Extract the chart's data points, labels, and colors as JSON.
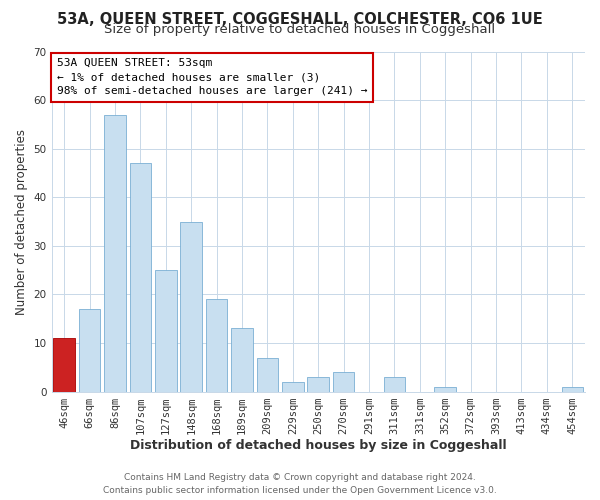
{
  "title": "53A, QUEEN STREET, COGGESHALL, COLCHESTER, CO6 1UE",
  "subtitle": "Size of property relative to detached houses in Coggeshall",
  "xlabel": "Distribution of detached houses by size in Coggeshall",
  "ylabel": "Number of detached properties",
  "footer_lines": [
    "Contains HM Land Registry data © Crown copyright and database right 2024.",
    "Contains public sector information licensed under the Open Government Licence v3.0."
  ],
  "annotation_title": "53A QUEEN STREET: 53sqm",
  "annotation_line1": "← 1% of detached houses are smaller (3)",
  "annotation_line2": "98% of semi-detached houses are larger (241) →",
  "bar_labels": [
    "46sqm",
    "66sqm",
    "86sqm",
    "107sqm",
    "127sqm",
    "148sqm",
    "168sqm",
    "189sqm",
    "209sqm",
    "229sqm",
    "250sqm",
    "270sqm",
    "291sqm",
    "311sqm",
    "331sqm",
    "352sqm",
    "372sqm",
    "393sqm",
    "413sqm",
    "434sqm",
    "454sqm"
  ],
  "bar_values": [
    11,
    17,
    57,
    47,
    25,
    35,
    19,
    13,
    7,
    2,
    3,
    4,
    0,
    3,
    0,
    1,
    0,
    0,
    0,
    0,
    1
  ],
  "highlight_bar_index": 0,
  "bar_color": "#c8dff0",
  "bar_edge_color": "#7aafd4",
  "highlight_color": "#cc2222",
  "highlight_edge_color": "#aa0000",
  "annotation_box_edge": "#cc0000",
  "ylim": [
    0,
    70
  ],
  "yticks": [
    0,
    10,
    20,
    30,
    40,
    50,
    60,
    70
  ],
  "grid_color": "#c8d8e8",
  "bg_color": "#ffffff",
  "plot_bg_color": "#ffffff",
  "title_fontsize": 10.5,
  "subtitle_fontsize": 9.5,
  "tick_fontsize": 7.5,
  "footer_fontsize": 6.5,
  "xlabel_fontsize": 9,
  "ylabel_fontsize": 8.5
}
